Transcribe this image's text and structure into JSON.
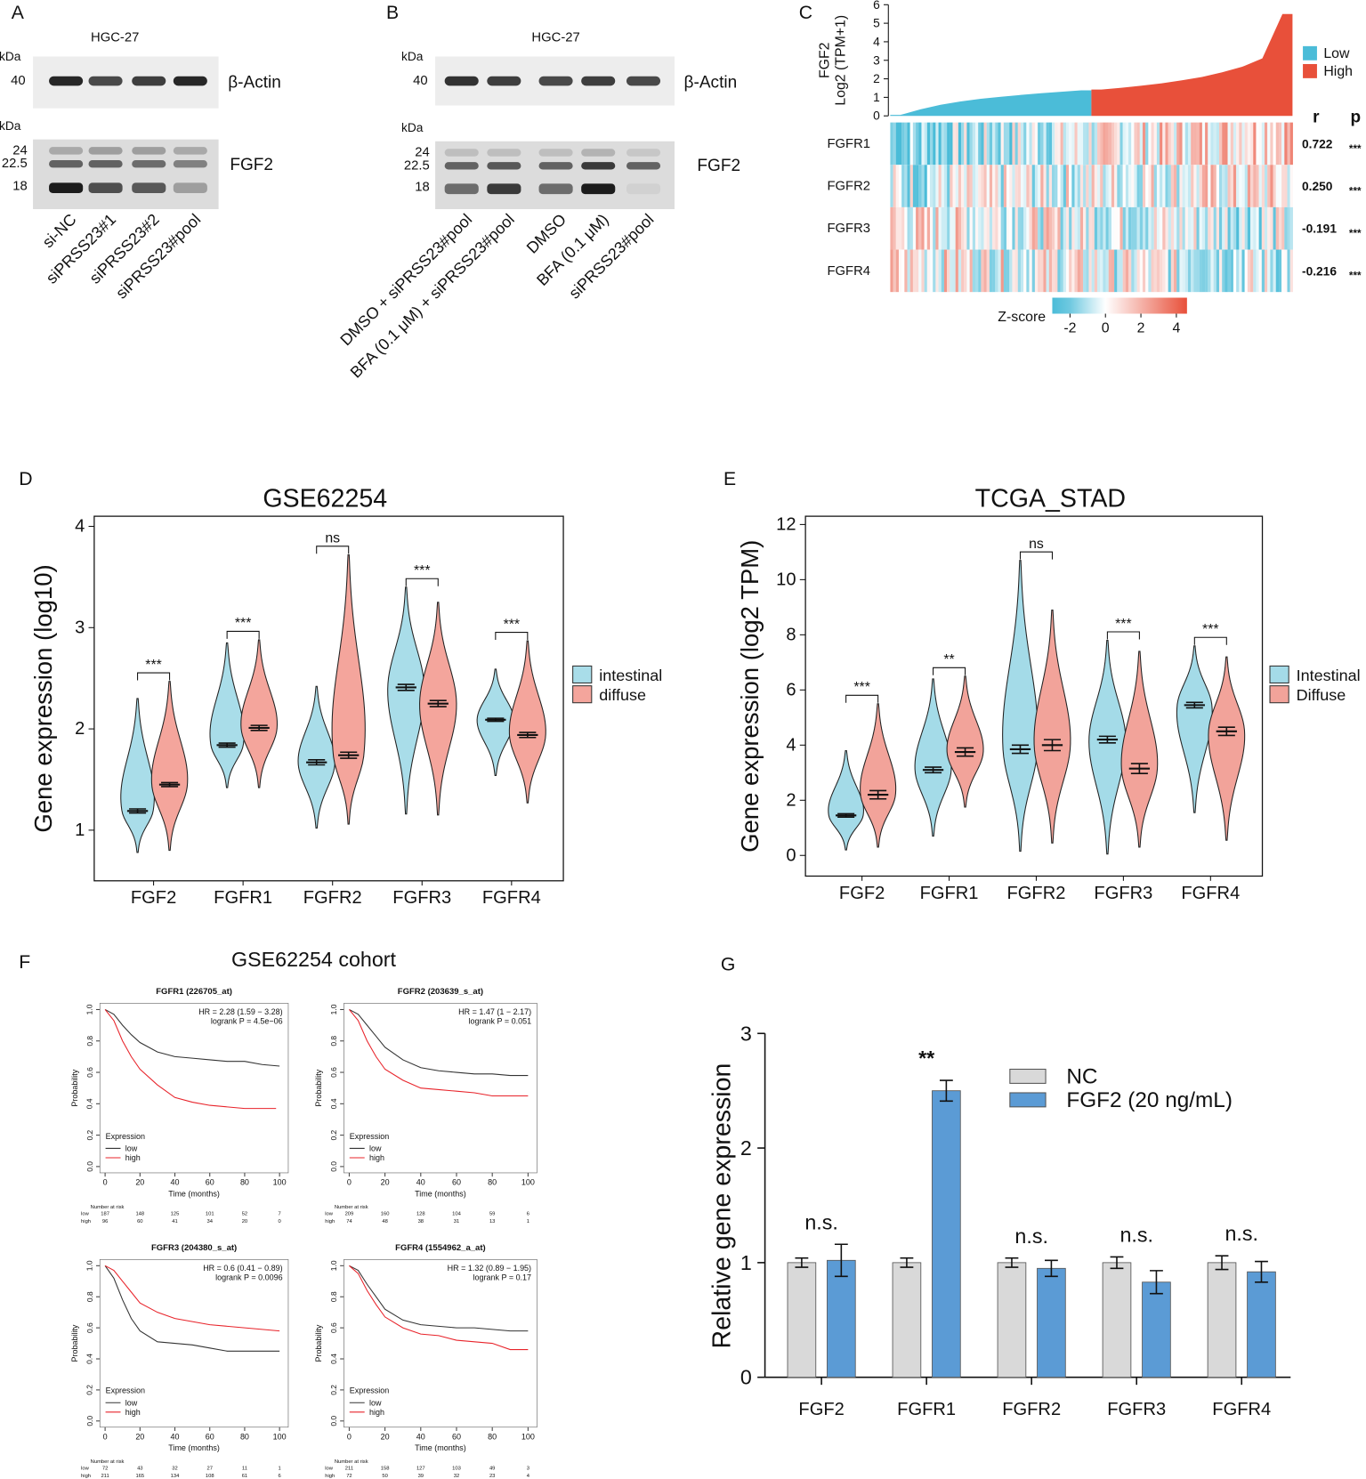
{
  "panel_labels": [
    "A",
    "B",
    "C",
    "D",
    "E",
    "F",
    "G"
  ],
  "blot_a": {
    "cell_line": "HGC-27",
    "kda_top": "kDa",
    "marker_top": "40",
    "top_label": "β-Actin",
    "kda_bottom": "kDa",
    "markers": [
      "24",
      "22.5",
      "18"
    ],
    "bottom_label": "FGF2",
    "lanes": [
      "si-NC",
      "siPRSS23#1",
      "siPRSS23#2",
      "siPRSS23#pool"
    ]
  },
  "blot_b": {
    "cell_line": "HGC-27",
    "kda_top": "kDa",
    "marker_top": "40",
    "top_label": "β-Actin",
    "kda_bottom": "kDa",
    "markers": [
      "24",
      "22.5",
      "18"
    ],
    "bottom_label": "FGF2",
    "lanes": [
      "DMSO + siPRSS23#pool",
      "BFA (0.1 μM) + siPRSS23#pool",
      "DMSO",
      "BFA (0.1 μM)",
      "siPRSS23#pool"
    ]
  },
  "panel_f": {
    "title": "GSE62254 cohort"
  },
  "chart_data": [
    {
      "type": "ranked-heatmap",
      "ylabel_lines": [
        "FGF2",
        "Log2 (TPM+1)"
      ],
      "ylim": [
        0,
        6
      ],
      "yticks": [
        0,
        1,
        2,
        3,
        4,
        5,
        6
      ],
      "series": [
        {
          "name": "Low",
          "color": "#4bbcd8",
          "values": [
            0.05,
            0.35,
            0.6,
            0.78,
            0.92,
            1.03,
            1.13,
            1.22,
            1.3,
            1.38
          ]
        },
        {
          "name": "High",
          "color": "#e8503a",
          "values": [
            1.42,
            1.52,
            1.63,
            1.76,
            1.92,
            2.1,
            2.35,
            2.65,
            3.1,
            5.5
          ]
        }
      ],
      "rows": [
        "FGFR1",
        "FGFR2",
        "FGFR3",
        "FGFR4"
      ],
      "r_header": "r",
      "p_header": "p",
      "r_values": [
        0.722,
        {
          "value": 0.25,
          "label": "0.250"
        },
        -0.191,
        -0.216
      ],
      "p_values": [
        "***",
        "***",
        "***",
        "***"
      ],
      "colorbar_title": "Z-score",
      "zlim": [
        -3,
        4.6
      ],
      "zticks": [
        -2,
        0,
        2,
        4
      ]
    },
    {
      "type": "violin",
      "title": "GSE62254",
      "ylabel": "Gene expression (log10)",
      "categories": [
        "FGF2",
        "FGFR1",
        "FGFR2",
        "FGFR3",
        "FGFR4"
      ],
      "ylim": [
        0.5,
        4.1
      ],
      "yticks": [
        1,
        2,
        3,
        4
      ],
      "significance": [
        "***",
        "***",
        "ns",
        "***",
        "***"
      ],
      "series": [
        {
          "name": "intestinal",
          "color": "#a9dde9",
          "values": [
            1.19,
            1.84,
            1.67,
            2.41,
            2.09
          ],
          "errors": [
            0.02,
            0.02,
            0.025,
            0.03,
            0.015
          ],
          "mins": [
            0.78,
            1.42,
            1.02,
            1.16,
            1.54
          ],
          "maxs": [
            2.3,
            2.85,
            2.42,
            3.4,
            2.59
          ]
        },
        {
          "name": "diffuse",
          "color": "#f4a59c",
          "values": [
            1.45,
            2.01,
            1.74,
            2.25,
            1.94
          ],
          "errors": [
            0.02,
            0.025,
            0.03,
            0.03,
            0.025
          ],
          "mins": [
            0.8,
            1.42,
            1.06,
            1.15,
            1.27
          ],
          "maxs": [
            2.47,
            2.88,
            3.72,
            3.25,
            2.87
          ]
        }
      ]
    },
    {
      "type": "violin",
      "title": "TCGA_STAD",
      "ylabel": "Gene expression (log2 TPM)",
      "categories": [
        "FGF2",
        "FGFR1",
        "FGFR2",
        "FGFR3",
        "FGFR4"
      ],
      "ylim": [
        -0.75,
        12.3
      ],
      "yticks": [
        0,
        2,
        4,
        6,
        8,
        10,
        12
      ],
      "significance": [
        "***",
        "**",
        "ns",
        "***",
        "***"
      ],
      "series": [
        {
          "name": "Intestinal",
          "color": "#a4dbe8",
          "values": [
            1.45,
            3.1,
            3.85,
            4.2,
            5.45
          ],
          "errors": [
            0.06,
            0.1,
            0.15,
            0.12,
            0.1
          ],
          "mins": [
            0.2,
            0.7,
            0.15,
            0.05,
            1.55
          ],
          "maxs": [
            3.8,
            6.4,
            10.7,
            7.8,
            7.6
          ]
        },
        {
          "name": "Diffuse",
          "color": "#f2a39a",
          "values": [
            2.2,
            3.75,
            4.0,
            3.15,
            4.5
          ],
          "errors": [
            0.15,
            0.15,
            0.2,
            0.18,
            0.15
          ],
          "mins": [
            0.3,
            1.75,
            0.45,
            0.3,
            0.55
          ],
          "maxs": [
            5.5,
            6.5,
            8.9,
            7.4,
            7.2
          ]
        }
      ]
    },
    {
      "type": "km",
      "title": "FGFR1 (226705_at)",
      "stats": [
        "HR = 2.28 (1.59 − 3.28)",
        "logrank P = 4.5e−06"
      ],
      "xlabel": "Time (months)",
      "ylabel": "Probability",
      "xlim": [
        -3,
        105
      ],
      "ylim": [
        -0.04,
        1.04
      ],
      "xticks": [
        0,
        20,
        40,
        60,
        80,
        100
      ],
      "yticks": [
        {
          "value": 0,
          "label": "0.0"
        },
        0.2,
        0.4,
        0.6,
        0.8,
        {
          "value": 1,
          "label": "1.0"
        }
      ],
      "legend_title": "Expression",
      "risk_title": "Number at risk",
      "series": [
        {
          "name": "low",
          "color": "#333333",
          "x": [
            0,
            5,
            10,
            15,
            20,
            30,
            40,
            50,
            60,
            70,
            80,
            90,
            100
          ],
          "values": [
            1,
            0.97,
            0.9,
            0.84,
            0.79,
            0.73,
            0.7,
            0.69,
            0.68,
            0.67,
            0.67,
            0.65,
            0.64
          ],
          "at_risk": [
            187,
            148,
            125,
            101,
            52,
            7
          ]
        },
        {
          "name": "high",
          "color": "#e8232a",
          "x": [
            0,
            5,
            10,
            15,
            20,
            30,
            40,
            50,
            60,
            70,
            80,
            90,
            98
          ],
          "values": [
            1,
            0.93,
            0.8,
            0.7,
            0.62,
            0.52,
            0.44,
            0.41,
            0.39,
            0.38,
            0.37,
            0.37,
            0.37
          ],
          "at_risk": [
            96,
            60,
            41,
            34,
            20,
            0
          ]
        }
      ]
    },
    {
      "type": "km",
      "title": "FGFR2 (203639_s_at)",
      "stats": [
        "HR = 1.47 (1 − 2.17)",
        "logrank P = 0.051"
      ],
      "xlabel": "Time (months)",
      "ylabel": "Probability",
      "xlim": [
        -3,
        105
      ],
      "ylim": [
        -0.04,
        1.04
      ],
      "xticks": [
        0,
        20,
        40,
        60,
        80,
        100
      ],
      "yticks": [
        {
          "value": 0,
          "label": "0.0"
        },
        0.2,
        0.4,
        0.6,
        0.8,
        {
          "value": 1,
          "label": "1.0"
        }
      ],
      "legend_title": "Expression",
      "risk_title": "Number at risk",
      "series": [
        {
          "name": "low",
          "color": "#333333",
          "x": [
            0,
            5,
            10,
            15,
            20,
            30,
            40,
            50,
            60,
            70,
            80,
            90,
            100
          ],
          "values": [
            1,
            0.97,
            0.9,
            0.83,
            0.76,
            0.68,
            0.63,
            0.61,
            0.6,
            0.59,
            0.59,
            0.58,
            0.58
          ],
          "at_risk": [
            209,
            160,
            128,
            104,
            59,
            6
          ]
        },
        {
          "name": "high",
          "color": "#e8232a",
          "x": [
            0,
            5,
            10,
            15,
            20,
            30,
            40,
            50,
            60,
            70,
            80,
            90,
            100
          ],
          "values": [
            1,
            0.93,
            0.8,
            0.7,
            0.62,
            0.55,
            0.5,
            0.49,
            0.48,
            0.47,
            0.45,
            0.45,
            0.45
          ],
          "at_risk": [
            74,
            48,
            38,
            31,
            13,
            1
          ]
        }
      ]
    },
    {
      "type": "km",
      "title": "FGFR3 (204380_s_at)",
      "stats": [
        "HR = 0.6 (0.41 − 0.89)",
        "logrank P = 0.0096"
      ],
      "xlabel": "Time (months)",
      "ylabel": "Probability",
      "xlim": [
        -3,
        105
      ],
      "ylim": [
        -0.04,
        1.04
      ],
      "xticks": [
        0,
        20,
        40,
        60,
        80,
        100
      ],
      "yticks": [
        {
          "value": 0,
          "label": "0.0"
        },
        0.2,
        0.4,
        0.6,
        0.8,
        {
          "value": 1,
          "label": "1.0"
        }
      ],
      "legend_title": "Expression",
      "risk_title": "Number at risk",
      "series": [
        {
          "name": "low",
          "color": "#333333",
          "x": [
            0,
            5,
            10,
            15,
            20,
            30,
            40,
            50,
            60,
            70,
            80,
            90,
            100
          ],
          "values": [
            1,
            0.92,
            0.78,
            0.66,
            0.58,
            0.51,
            0.5,
            0.49,
            0.47,
            0.45,
            0.45,
            0.45,
            0.45
          ],
          "at_risk": [
            72,
            43,
            32,
            27,
            11,
            1
          ]
        },
        {
          "name": "high",
          "color": "#e8232a",
          "x": [
            0,
            5,
            10,
            15,
            20,
            30,
            40,
            50,
            60,
            70,
            80,
            90,
            100
          ],
          "values": [
            1,
            0.97,
            0.9,
            0.83,
            0.76,
            0.7,
            0.66,
            0.64,
            0.62,
            0.61,
            0.6,
            0.59,
            0.58
          ],
          "at_risk": [
            211,
            165,
            134,
            108,
            61,
            6
          ]
        }
      ]
    },
    {
      "type": "km",
      "title": "FGFR4 (1554962_a_at)",
      "stats": [
        "HR = 1.32 (0.89 − 1.95)",
        "logrank P = 0.17"
      ],
      "xlabel": "Time (months)",
      "ylabel": "Probability",
      "xlim": [
        -3,
        105
      ],
      "ylim": [
        -0.04,
        1.04
      ],
      "xticks": [
        0,
        20,
        40,
        60,
        80,
        100
      ],
      "yticks": [
        {
          "value": 0,
          "label": "0.0"
        },
        0.2,
        0.4,
        0.6,
        0.8,
        {
          "value": 1,
          "label": "1.0"
        }
      ],
      "legend_title": "Expression",
      "risk_title": "Number at risk",
      "series": [
        {
          "name": "low",
          "color": "#333333",
          "x": [
            0,
            5,
            10,
            15,
            20,
            30,
            40,
            50,
            60,
            70,
            80,
            90,
            100
          ],
          "values": [
            1,
            0.97,
            0.88,
            0.8,
            0.72,
            0.65,
            0.62,
            0.61,
            0.6,
            0.6,
            0.59,
            0.58,
            0.58
          ],
          "at_risk": [
            211,
            158,
            127,
            103,
            49,
            3
          ]
        },
        {
          "name": "high",
          "color": "#e8232a",
          "x": [
            0,
            5,
            10,
            15,
            20,
            30,
            40,
            50,
            60,
            70,
            80,
            90,
            100
          ],
          "values": [
            1,
            0.95,
            0.84,
            0.75,
            0.67,
            0.6,
            0.56,
            0.55,
            0.52,
            0.51,
            0.5,
            0.46,
            0.46
          ],
          "at_risk": [
            72,
            50,
            39,
            32,
            23,
            4
          ]
        }
      ]
    },
    {
      "type": "bar",
      "ylabel": "Relative gene expression",
      "categories": [
        "FGF2",
        "FGFR1",
        "FGFR2",
        "FGFR3",
        "FGFR4"
      ],
      "ylim": [
        0,
        3
      ],
      "yticks": [
        0,
        1,
        2,
        3
      ],
      "significance": [
        "n.s.",
        "**",
        "n.s.",
        "n.s.",
        "n.s."
      ],
      "series": [
        {
          "name": "NC",
          "color": "#d9d9d9",
          "values": [
            1,
            1,
            1,
            1,
            1
          ],
          "errors": [
            0.04,
            0.04,
            0.04,
            0.05,
            0.06
          ]
        },
        {
          "name": "FGF2 (20 ng/mL)",
          "color": "#5b9bd5",
          "values": [
            1.02,
            2.5,
            0.95,
            0.83,
            0.92
          ],
          "errors": [
            0.14,
            0.09,
            0.07,
            0.1,
            0.09
          ]
        }
      ]
    }
  ]
}
